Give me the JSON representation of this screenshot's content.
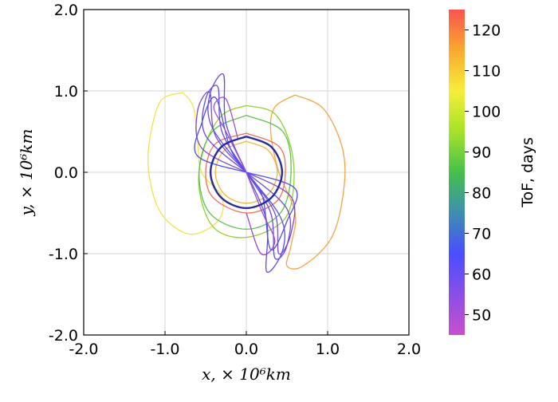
{
  "chart_data": {
    "type": "line",
    "title": "",
    "xlabel": "x, × 10⁶km",
    "ylabel": "y, × 10⁶km",
    "xlim": [
      -2.0,
      2.0
    ],
    "ylim": [
      -2.0,
      2.0
    ],
    "x_ticks": [
      "-2.0",
      "-1.0",
      "0.0",
      "1.0",
      "2.0"
    ],
    "y_ticks": [
      "-2.0",
      "-1.0",
      "0.0",
      "1.0",
      "2.0"
    ],
    "grid": true,
    "colorbar": {
      "label": "ToF, days",
      "range": [
        45,
        125
      ],
      "ticks": [
        "50",
        "60",
        "70",
        "80",
        "90",
        "100",
        "110",
        "120"
      ],
      "tick_values": [
        50,
        60,
        70,
        80,
        90,
        100,
        110,
        120
      ],
      "colors": [
        "#c84fcc",
        "#8a4fe6",
        "#4a4dff",
        "#3e8fb0",
        "#44c04a",
        "#a6e22a",
        "#f5ee3a",
        "#f9a92f",
        "#f9544f"
      ]
    },
    "series": [
      {
        "tof": 105,
        "color": "#f2e34a",
        "points": [
          [
            -0.78,
            0.98
          ],
          [
            -1.05,
            0.88
          ],
          [
            -1.18,
            0.45
          ],
          [
            -1.2,
            0.0
          ],
          [
            -1.05,
            -0.5
          ],
          [
            -0.7,
            -0.76
          ],
          [
            -0.35,
            -0.6
          ],
          [
            -0.3,
            -0.3
          ],
          [
            -0.55,
            0.0
          ],
          [
            -0.6,
            0.4
          ],
          [
            -0.65,
            0.8
          ],
          [
            -0.78,
            0.98
          ]
        ]
      },
      {
        "tof": 113,
        "color": "#f5a343",
        "points": [
          [
            0.6,
            0.95
          ],
          [
            0.95,
            0.78
          ],
          [
            1.18,
            0.3
          ],
          [
            1.2,
            -0.2
          ],
          [
            1.05,
            -0.8
          ],
          [
            0.7,
            -1.15
          ],
          [
            0.5,
            -1.15
          ],
          [
            0.55,
            -0.9
          ],
          [
            0.6,
            -0.5
          ],
          [
            0.4,
            0.0
          ],
          [
            0.3,
            0.5
          ],
          [
            0.35,
            0.8
          ],
          [
            0.6,
            0.95
          ]
        ]
      },
      {
        "tof": 110,
        "color": "#f6b43a",
        "points": [
          [
            0.0,
            0.38
          ],
          [
            0.27,
            0.27
          ],
          [
            0.38,
            0.0
          ],
          [
            0.27,
            -0.27
          ],
          [
            0.0,
            -0.38
          ],
          [
            -0.27,
            -0.27
          ],
          [
            -0.38,
            0.0
          ],
          [
            -0.27,
            0.27
          ],
          [
            0.0,
            0.38
          ]
        ]
      },
      {
        "tof": 93,
        "color": "#8fd12f",
        "points": [
          [
            0.0,
            0.82
          ],
          [
            0.35,
            0.72
          ],
          [
            0.55,
            0.3
          ],
          [
            0.58,
            -0.2
          ],
          [
            0.45,
            -0.6
          ],
          [
            0.0,
            -0.8
          ],
          [
            -0.4,
            -0.68
          ],
          [
            -0.58,
            -0.2
          ],
          [
            -0.52,
            0.3
          ],
          [
            -0.3,
            0.7
          ],
          [
            0.0,
            0.82
          ]
        ]
      },
      {
        "tof": 85,
        "color": "#5fbf4e",
        "points": [
          [
            0.0,
            0.7
          ],
          [
            0.45,
            0.5
          ],
          [
            0.55,
            0.0
          ],
          [
            0.42,
            -0.5
          ],
          [
            0.0,
            -0.7
          ],
          [
            -0.45,
            -0.5
          ],
          [
            -0.58,
            0.0
          ],
          [
            -0.42,
            0.5
          ],
          [
            0.0,
            0.7
          ]
        ]
      },
      {
        "tof": 118,
        "color": "#ee6e5a",
        "points": [
          [
            0.0,
            0.48
          ],
          [
            0.4,
            0.32
          ],
          [
            0.48,
            0.0
          ],
          [
            0.38,
            -0.35
          ],
          [
            0.0,
            -0.5
          ],
          [
            -0.4,
            -0.32
          ],
          [
            -0.5,
            0.0
          ],
          [
            -0.38,
            0.35
          ],
          [
            0.0,
            0.48
          ]
        ]
      },
      {
        "tof": 62,
        "color": "#5a4de8",
        "points": [
          [
            0.0,
            0.0
          ],
          [
            -0.42,
            0.55
          ],
          [
            -0.45,
            0.95
          ],
          [
            -0.28,
            1.2
          ],
          [
            -0.25,
            0.6
          ],
          [
            0.0,
            0.0
          ]
        ]
      },
      {
        "tof": 58,
        "color": "#6a4ae0",
        "points": [
          [
            0.0,
            0.0
          ],
          [
            -0.5,
            0.45
          ],
          [
            -0.5,
            0.9
          ],
          [
            -0.35,
            1.05
          ],
          [
            -0.3,
            0.5
          ],
          [
            0.0,
            0.0
          ]
        ]
      },
      {
        "tof": 55,
        "color": "#7a4ad8",
        "points": [
          [
            0.0,
            0.0
          ],
          [
            -0.55,
            0.3
          ],
          [
            -0.6,
            0.75
          ],
          [
            -0.45,
            0.98
          ],
          [
            -0.38,
            0.45
          ],
          [
            0.0,
            0.0
          ]
        ]
      },
      {
        "tof": 65,
        "color": "#4f4ff0",
        "points": [
          [
            0.0,
            0.0
          ],
          [
            -0.6,
            0.2
          ],
          [
            -0.55,
            0.6
          ],
          [
            -0.38,
            0.92
          ],
          [
            -0.2,
            0.3
          ],
          [
            0.0,
            0.0
          ]
        ]
      },
      {
        "tof": 62,
        "color": "#5a4de8",
        "points": [
          [
            0.0,
            0.0
          ],
          [
            0.42,
            -0.55
          ],
          [
            0.45,
            -0.95
          ],
          [
            0.25,
            -1.22
          ],
          [
            0.25,
            -0.6
          ],
          [
            0.0,
            0.0
          ]
        ]
      },
      {
        "tof": 58,
        "color": "#6a4ae0",
        "points": [
          [
            0.0,
            0.0
          ],
          [
            0.5,
            -0.45
          ],
          [
            0.5,
            -0.9
          ],
          [
            0.35,
            -1.05
          ],
          [
            0.3,
            -0.5
          ],
          [
            0.0,
            0.0
          ]
        ]
      },
      {
        "tof": 55,
        "color": "#7a4ad8",
        "points": [
          [
            0.0,
            0.0
          ],
          [
            0.55,
            -0.3
          ],
          [
            0.55,
            -0.75
          ],
          [
            0.4,
            -1.0
          ],
          [
            0.35,
            -0.5
          ],
          [
            0.0,
            0.0
          ]
        ]
      },
      {
        "tof": 65,
        "color": "#4f4ff0",
        "points": [
          [
            0.0,
            0.0
          ],
          [
            0.6,
            -0.2
          ],
          [
            0.5,
            -0.6
          ],
          [
            0.3,
            -0.95
          ],
          [
            0.2,
            -0.3
          ],
          [
            0.0,
            0.0
          ]
        ]
      },
      {
        "tof": 50,
        "color": "#9a4ad0",
        "points": [
          [
            0.0,
            0.0
          ],
          [
            0.2,
            -0.5
          ],
          [
            0.35,
            -0.85
          ],
          [
            0.18,
            -1.0
          ],
          [
            0.0,
            -0.5
          ]
        ]
      },
      {
        "tof": 48,
        "color": "#a04fcc",
        "points": [
          [
            0.0,
            0.0
          ],
          [
            -0.25,
            0.5
          ],
          [
            -0.4,
            0.8
          ],
          [
            -0.25,
            0.9
          ],
          [
            -0.1,
            0.4
          ]
        ]
      },
      {
        "tof": 68,
        "color": "#2a2a9a",
        "points": [
          [
            0.0,
            0.44
          ],
          [
            0.31,
            0.31
          ],
          [
            0.44,
            0.0
          ],
          [
            0.31,
            -0.31
          ],
          [
            0.0,
            -0.44
          ],
          [
            -0.31,
            -0.31
          ],
          [
            -0.44,
            0.0
          ],
          [
            -0.31,
            0.31
          ],
          [
            0.0,
            0.44
          ]
        ]
      }
    ]
  }
}
